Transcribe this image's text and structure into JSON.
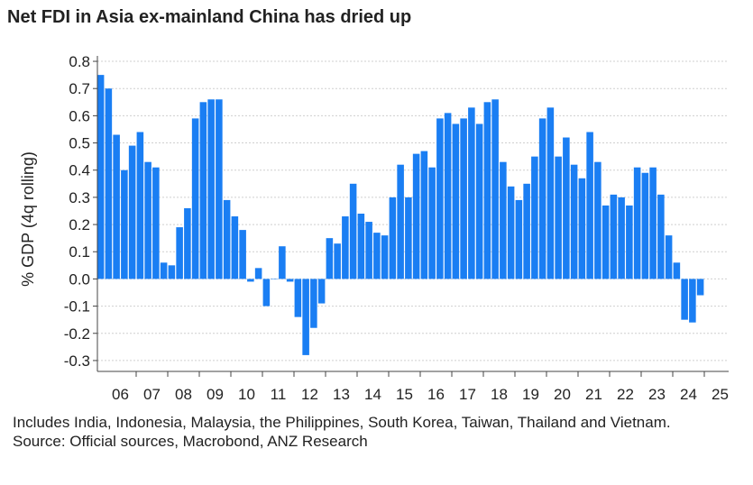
{
  "title": "Net FDI in Asia ex-mainland China has dried up",
  "notes": {
    "line1": "Includes India, Indonesia, Malaysia, the Philippines, South Korea, Taiwan, Thailand and Vietnam.",
    "source": "Source: Official sources, Macrobond, ANZ Research"
  },
  "colors": {
    "bar": "#1a7ef3",
    "axis": "#444444",
    "grid": "#cfcfcf"
  },
  "chart_data": {
    "type": "bar",
    "title": "Net FDI in Asia ex-mainland China has dried up",
    "xlabel": "",
    "ylabel": "% GDP (4q rolling)",
    "ylim": [
      -0.34,
      0.82
    ],
    "yticks": [
      0.8,
      0.7,
      0.6,
      0.5,
      0.4,
      0.3,
      0.2,
      0.1,
      0.0,
      -0.1,
      -0.2,
      -0.3
    ],
    "ytick_labels": [
      "0.8",
      "0.7",
      "0.6",
      "0.5",
      "0.4",
      "0.3",
      "0.2",
      "0.1",
      "0.0",
      "-0.1",
      "-0.2",
      "-0.3"
    ],
    "xtick_labels": [
      "06",
      "07",
      "08",
      "09",
      "10",
      "11",
      "12",
      "13",
      "14",
      "15",
      "16",
      "17",
      "18",
      "19",
      "20",
      "21",
      "22",
      "23",
      "24",
      "25"
    ],
    "grid": "horizontal dotted",
    "frequency": "quarterly",
    "start": "2005 Q4",
    "values": [
      0.75,
      0.7,
      0.53,
      0.4,
      0.49,
      0.54,
      0.43,
      0.41,
      0.06,
      0.05,
      0.19,
      0.26,
      0.59,
      0.65,
      0.66,
      0.66,
      0.29,
      0.23,
      0.18,
      -0.01,
      0.04,
      -0.1,
      0.0,
      0.12,
      -0.01,
      -0.14,
      -0.28,
      -0.18,
      -0.09,
      0.15,
      0.13,
      0.23,
      0.35,
      0.24,
      0.21,
      0.17,
      0.16,
      0.3,
      0.42,
      0.3,
      0.46,
      0.47,
      0.41,
      0.59,
      0.61,
      0.57,
      0.59,
      0.63,
      0.57,
      0.65,
      0.66,
      0.43,
      0.34,
      0.29,
      0.35,
      0.45,
      0.59,
      0.63,
      0.45,
      0.52,
      0.42,
      0.37,
      0.54,
      0.43,
      0.27,
      0.31,
      0.3,
      0.27,
      0.41,
      0.39,
      0.41,
      0.31,
      0.16,
      0.06,
      -0.15,
      -0.16,
      -0.06
    ]
  }
}
